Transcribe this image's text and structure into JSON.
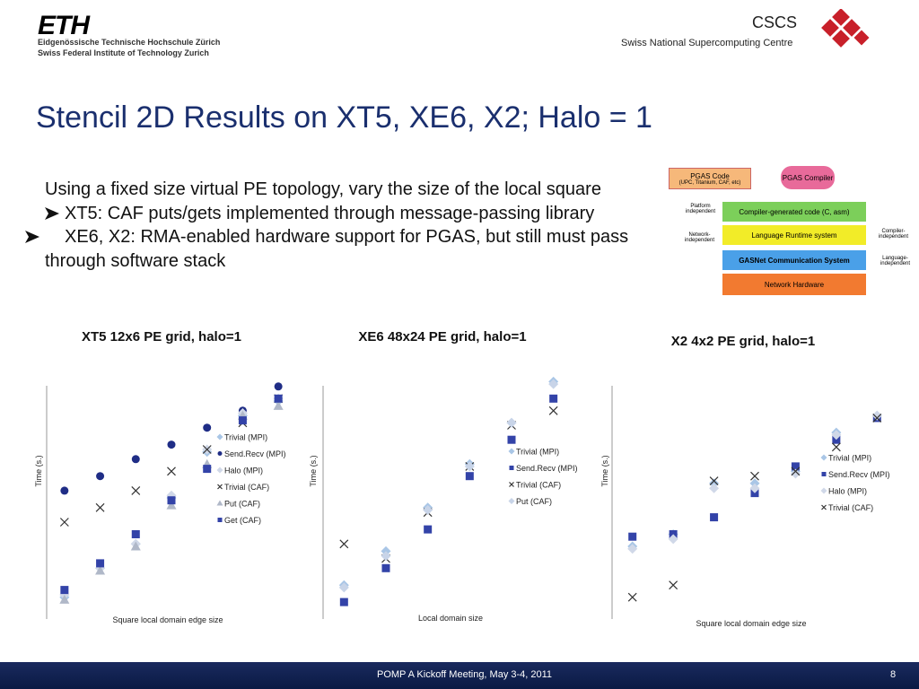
{
  "header": {
    "logo": "ETH",
    "institute_de": "Eidgenössische Technische Hochschule Zürich",
    "institute_en": "Swiss Federal Institute of Technology Zurich",
    "centre_logo": "CSCS",
    "centre": "Swiss National Supercomputing Centre"
  },
  "title": "Stencil 2D Results on XT5, XE6, X2; Halo = 1",
  "intro": "Using a fixed size virtual PE topology, vary the size of the local square",
  "bullets": [
    "XT5: CAF puts/gets implemented through message-passing library",
    "XE6, X2:  RMA-enabled hardware support for PGAS, but still must pass through software stack"
  ],
  "diagram": {
    "pgas_code": "PGAS Code",
    "pgas_code_sub": "(UPC, Titanium, CAF, etc)",
    "pgas_compiler": "PGAS Compiler",
    "platform_independent": "Platform independent",
    "network_independent": "Network-independent",
    "compiler_code": "Compiler-generated code (C, asm)",
    "runtime": "Language Runtime system",
    "gasnet": "GASNet Communication System",
    "hardware": "Network Hardware",
    "compiler_independent": "Compiler-independent",
    "language_independent": "Language-independent"
  },
  "chart_data": [
    {
      "type": "scatter",
      "title": "XT5 12x6 PE grid, halo=1",
      "x_label": "Square local domain edge size",
      "y_label": "Time (s.)",
      "legend": "center-right",
      "categories": [
        null,
        null,
        null,
        null,
        null,
        null,
        null
      ],
      "ylim": [
        0,
        100
      ],
      "series": [
        {
          "name": "Trivial (MPI)",
          "color": "#a9c6e6",
          "marker": "diamond",
          "values": [
            9,
            21,
            31,
            50,
            69,
            84,
            90
          ]
        },
        {
          "name": "Send.Recv (MPI)",
          "color": "#1f2d86",
          "marker": "circle",
          "values": [
            53,
            59,
            66,
            72,
            79,
            86,
            96
          ]
        },
        {
          "name": "Halo (MPI)",
          "color": "#d0d8e8",
          "marker": "diamond",
          "values": [
            10,
            21,
            31,
            51,
            70,
            85,
            91
          ]
        },
        {
          "name": "Trivial (CAF)",
          "color": "#333333",
          "marker": "x",
          "values": [
            40,
            46,
            53,
            61,
            70,
            81,
            91
          ]
        },
        {
          "name": "Put (CAF)",
          "color": "#b0b8c8",
          "marker": "triangle",
          "values": [
            8,
            20,
            30,
            47,
            64,
            84,
            88
          ]
        },
        {
          "name": "Get (CAF)",
          "color": "#3343a8",
          "marker": "square",
          "values": [
            12,
            23,
            35,
            49,
            62,
            82,
            91
          ]
        }
      ]
    },
    {
      "type": "scatter",
      "title": "XE6 48x24 PE grid, halo=1",
      "x_label": "Local domain size",
      "y_label": "Time (s.)",
      "legend": "center-right",
      "categories": [
        null,
        null,
        null,
        null,
        null,
        null
      ],
      "ylim": [
        0,
        100
      ],
      "series": [
        {
          "name": "Trivial (MPI)",
          "color": "#a9c6e6",
          "marker": "diamond",
          "values": [
            14,
            28,
            46,
            64,
            81,
            98
          ]
        },
        {
          "name": "Send.Recv (MPI)",
          "color": "#3343a8",
          "marker": "square",
          "values": [
            7,
            21,
            37,
            59,
            74,
            91
          ]
        },
        {
          "name": "Trivial (CAF)",
          "color": "#333333",
          "marker": "x",
          "values": [
            31,
            25,
            44,
            63,
            80,
            86
          ]
        },
        {
          "name": "Put (CAF)",
          "color": "#c8d4e8",
          "marker": "diamond",
          "values": [
            13,
            26,
            45,
            63,
            81,
            97
          ]
        }
      ]
    },
    {
      "type": "scatter",
      "title": "X2 4x2 PE grid, halo=1",
      "x_label": "Square local domain edge size",
      "y_label": "Time (s.)",
      "legend": "center-right",
      "categories": [
        null,
        null,
        null,
        null,
        null,
        null,
        null
      ],
      "ylim": [
        0,
        100
      ],
      "series": [
        {
          "name": "Trivial (MPI)",
          "color": "#a9c6e6",
          "marker": "diamond",
          "values": [
            30,
            35,
            56,
            56,
            61,
            77,
            84
          ]
        },
        {
          "name": "Send.Recv (MPI)",
          "color": "#3343a8",
          "marker": "square",
          "values": [
            34,
            35,
            42,
            52,
            63,
            74,
            83
          ]
        },
        {
          "name": "Halo (MPI)",
          "color": "#d0d8e8",
          "marker": "diamond",
          "values": [
            29,
            33,
            54,
            54,
            60,
            76,
            84
          ]
        },
        {
          "name": "Trivial (CAF)",
          "color": "#333333",
          "marker": "x",
          "values": [
            9,
            14,
            57,
            59,
            61,
            71,
            83
          ]
        }
      ]
    }
  ],
  "footer": {
    "event": "POMP A Kickoff Meeting, May 3-4, 2011",
    "page": "8"
  }
}
